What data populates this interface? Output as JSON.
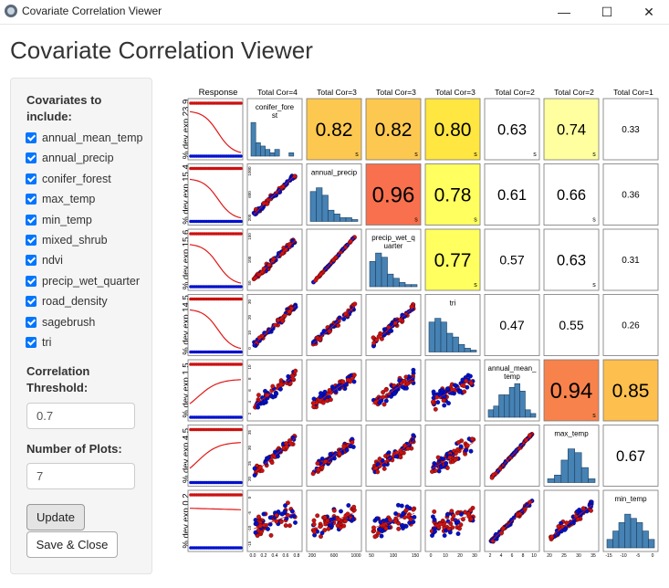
{
  "window": {
    "title": "Covariate Correlation Viewer",
    "minimize_glyph": "—",
    "maximize_glyph": "☐",
    "close_glyph": "✕"
  },
  "app_title": "Covariate Correlation Viewer",
  "sidebar": {
    "covariates_label": "Covariates to include:",
    "covariates": [
      {
        "label": "annual_mean_temp",
        "checked": true
      },
      {
        "label": "annual_precip",
        "checked": true
      },
      {
        "label": "conifer_forest",
        "checked": true
      },
      {
        "label": "max_temp",
        "checked": true
      },
      {
        "label": "min_temp",
        "checked": true
      },
      {
        "label": "mixed_shrub",
        "checked": true
      },
      {
        "label": "ndvi",
        "checked": true
      },
      {
        "label": "precip_wet_quarter",
        "checked": true
      },
      {
        "label": "road_density",
        "checked": true
      },
      {
        "label": "sagebrush",
        "checked": true
      },
      {
        "label": "tri",
        "checked": true
      }
    ],
    "threshold_label": "Correlation Threshold:",
    "threshold_value": "0.7",
    "num_plots_label": "Number of Plots:",
    "num_plots_value": "7",
    "update_label": "Update",
    "save_close_label": "Save & Close"
  },
  "chart_data": {
    "type": "scatter-matrix",
    "response_header": "Response",
    "column_headers": [
      "Total Cor=4",
      "Total Cor=3",
      "Total Cor=3",
      "Total Cor=3",
      "Total Cor=2",
      "Total Cor=2",
      "Total Cor=1"
    ],
    "variables": [
      "conifer_forest",
      "annual_precip",
      "precip_wet_quarter",
      "tri",
      "annual_mean_temp",
      "max_temp",
      "min_temp"
    ],
    "variable_display_labels": [
      "conifer_fore\nst",
      "annual_precip",
      "precip_wet_q\nuarter",
      "tri",
      "annual_mean_\ntemp",
      "max_temp",
      "min_temp"
    ],
    "row_labels": [
      "% dev exp 23.9",
      "% dev exp 15.4",
      "% dev exp 15.6",
      "% dev exp 14.5",
      "% dev exp 1.5",
      "% dev exp 4.5",
      "% dev exp 0.2"
    ],
    "correlations": [
      {
        "row": 0,
        "col": 1,
        "value": "0.82",
        "sig": "s",
        "color": "#fdc850"
      },
      {
        "row": 0,
        "col": 2,
        "value": "0.82",
        "sig": "s",
        "color": "#fdc850"
      },
      {
        "row": 0,
        "col": 3,
        "value": "0.80",
        "sig": "s",
        "color": "#ffe640"
      },
      {
        "row": 0,
        "col": 4,
        "value": "0.63",
        "sig": "s",
        "color": ""
      },
      {
        "row": 0,
        "col": 5,
        "value": "0.74",
        "sig": "s",
        "color": "#ffffa0"
      },
      {
        "row": 0,
        "col": 6,
        "value": "0.33",
        "sig": "",
        "color": ""
      },
      {
        "row": 1,
        "col": 2,
        "value": "0.96",
        "sig": "s",
        "color": "#f8704e"
      },
      {
        "row": 1,
        "col": 3,
        "value": "0.78",
        "sig": "s",
        "color": "#ffff60"
      },
      {
        "row": 1,
        "col": 4,
        "value": "0.61",
        "sig": "",
        "color": ""
      },
      {
        "row": 1,
        "col": 5,
        "value": "0.66",
        "sig": "s",
        "color": ""
      },
      {
        "row": 1,
        "col": 6,
        "value": "0.36",
        "sig": "",
        "color": ""
      },
      {
        "row": 2,
        "col": 3,
        "value": "0.77",
        "sig": "s",
        "color": "#ffff60"
      },
      {
        "row": 2,
        "col": 4,
        "value": "0.57",
        "sig": "",
        "color": ""
      },
      {
        "row": 2,
        "col": 5,
        "value": "0.63",
        "sig": "s",
        "color": ""
      },
      {
        "row": 2,
        "col": 6,
        "value": "0.31",
        "sig": "",
        "color": ""
      },
      {
        "row": 3,
        "col": 4,
        "value": "0.47",
        "sig": "",
        "color": ""
      },
      {
        "row": 3,
        "col": 5,
        "value": "0.55",
        "sig": "",
        "color": ""
      },
      {
        "row": 3,
        "col": 6,
        "value": "0.26",
        "sig": "",
        "color": ""
      },
      {
        "row": 4,
        "col": 5,
        "value": "0.94",
        "sig": "s",
        "color": "#f8824c"
      },
      {
        "row": 4,
        "col": 6,
        "value": "0.85",
        "sig": "",
        "color": "#fdbf4e"
      },
      {
        "row": 5,
        "col": 6,
        "value": "0.67",
        "sig": "",
        "color": ""
      }
    ],
    "response_curves": [
      {
        "shape": "decreasing",
        "level": 0.9
      },
      {
        "shape": "decreasing",
        "level": 0.85
      },
      {
        "shape": "decreasing",
        "level": 0.85
      },
      {
        "shape": "decreasing",
        "level": 0.85
      },
      {
        "shape": "increasing",
        "level": 0.75
      },
      {
        "shape": "increasing",
        "level": 0.8
      },
      {
        "shape": "flat",
        "level": 0.78
      }
    ],
    "histograms": [
      [
        10,
        4,
        3,
        2,
        1,
        2,
        0,
        0,
        1,
        0
      ],
      [
        8,
        9,
        7,
        3,
        2,
        1,
        1,
        0.5
      ],
      [
        6,
        8,
        7,
        3,
        2,
        1,
        0.5,
        0.5
      ],
      [
        8,
        9,
        8,
        5,
        4,
        2,
        1,
        0.5
      ],
      [
        2,
        3,
        6,
        6,
        8,
        9,
        7,
        2,
        1
      ],
      [
        1,
        2,
        6,
        9,
        8,
        4,
        1
      ],
      [
        2,
        4,
        6,
        8,
        7,
        6,
        4,
        2
      ]
    ],
    "x_tick_labels": [
      [
        "0.0",
        "0.2",
        "0.4",
        "0.6",
        "0.8"
      ],
      [
        "200",
        "600",
        "1000"
      ],
      [
        "50",
        "100",
        "150"
      ],
      [
        "0",
        "10",
        "20",
        "30"
      ],
      [
        "2",
        "4",
        "6",
        "8",
        "10"
      ],
      [
        "20",
        "25",
        "30",
        "35"
      ],
      [
        "-15",
        "-10",
        "-5",
        "0"
      ]
    ],
    "y_tick_labels": [
      [],
      [
        "200",
        "600",
        "1000"
      ],
      [
        "50",
        "100",
        "150"
      ],
      [
        "0",
        "10",
        "20",
        "30"
      ],
      [
        "2",
        "4",
        "6",
        "8",
        "10"
      ],
      [
        "20",
        "25",
        "30",
        "35"
      ],
      [
        "-15",
        "-10",
        "-5",
        "0"
      ]
    ],
    "point_colors": {
      "presence": "#cc1010",
      "absence": "#0010cc"
    }
  }
}
